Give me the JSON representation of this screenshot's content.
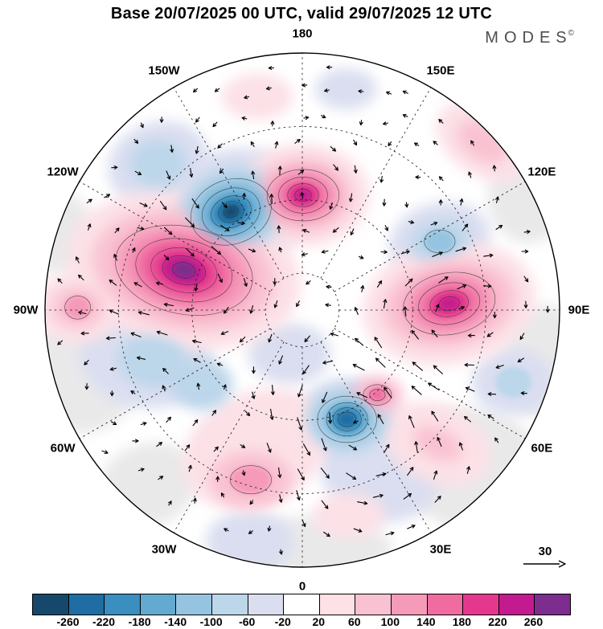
{
  "header": {
    "title": "Base 20/07/2025 00 UTC, valid 29/07/2025 12 UTC",
    "logo": "MODES",
    "logo_mark": "©"
  },
  "map": {
    "longitude_labels": [
      {
        "text": "180",
        "angle_deg": -90
      },
      {
        "text": "150E",
        "angle_deg": -60
      },
      {
        "text": "120E",
        "angle_deg": -30
      },
      {
        "text": "90E",
        "angle_deg": 0
      },
      {
        "text": "60E",
        "angle_deg": 30
      },
      {
        "text": "30E",
        "angle_deg": 60
      },
      {
        "text": "0",
        "angle_deg": 90
      },
      {
        "text": "30W",
        "angle_deg": 120
      },
      {
        "text": "60W",
        "angle_deg": 150
      },
      {
        "text": "90W",
        "angle_deg": 180
      },
      {
        "text": "120W",
        "angle_deg": -150
      },
      {
        "text": "150W",
        "angle_deg": -120
      }
    ]
  },
  "wind_scale": {
    "value": "30"
  },
  "chart_data": {
    "type": "heatmap",
    "subtype": "north-polar-stereographic-anomaly-map-with-wind-vectors",
    "title": "Base 20/07/2025 00 UTC, valid 29/07/2025 12 UTC",
    "wind_reference_value": 30,
    "gray_color": "#e9e9ea",
    "colorbar": {
      "orientation": "horizontal",
      "tick_labels": [
        "-260",
        "-220",
        "-180",
        "-140",
        "-100",
        "-60",
        "-20",
        "20",
        "60",
        "100",
        "140",
        "180",
        "220",
        "260"
      ],
      "colors": [
        "#16486b",
        "#1f6da3",
        "#3a8ec0",
        "#63aad2",
        "#94c4e0",
        "#bcd6ea",
        "#dadef0",
        "#ffffff",
        "#fce1e7",
        "#f9c2d2",
        "#f59ab9",
        "#ef6ba0",
        "#e5388d",
        "#c41a8f",
        "#7c2d8e"
      ]
    },
    "anomaly_centers": [
      {
        "u": -0.46,
        "v": -0.155,
        "s": 1.6,
        "r": 0.3,
        "sign": "positive"
      },
      {
        "u": -0.277,
        "v": -0.382,
        "s": -1.4,
        "r": 0.2,
        "sign": "negative"
      },
      {
        "u": 0.003,
        "v": -0.447,
        "s": 1.2,
        "r": 0.18,
        "sign": "positive"
      },
      {
        "u": 0.571,
        "v": -0.025,
        "s": 1.4,
        "r": 0.26,
        "sign": "positive"
      },
      {
        "u": 0.174,
        "v": 0.425,
        "s": -1.3,
        "r": 0.18,
        "sign": "negative"
      },
      {
        "u": -0.61,
        "v": 0.18,
        "s": -0.7,
        "r": 0.25,
        "sign": "negative"
      },
      {
        "u": -0.18,
        "v": 0.54,
        "s": 0.8,
        "r": 0.25,
        "sign": "positive"
      },
      {
        "u": 0.534,
        "v": -0.267,
        "s": -0.8,
        "r": 0.18,
        "sign": "negative"
      },
      {
        "u": 0.3,
        "v": 0.62,
        "s": -0.5,
        "r": 0.22,
        "sign": "negative"
      },
      {
        "u": 0.0,
        "v": 0.0,
        "s": -0.5,
        "r": 0.9,
        "sign": "background"
      }
    ],
    "shaded_regions": [
      {
        "u": -0.87,
        "v": 0.26,
        "rx": 0.24,
        "ry": 0.22,
        "rot": 0,
        "c": -1
      },
      {
        "u": -0.6,
        "v": 0.68,
        "rx": 0.2,
        "ry": 0.16,
        "rot": -20,
        "c": -1
      },
      {
        "u": 0.05,
        "v": 0.93,
        "rx": 0.3,
        "ry": 0.13,
        "rot": 0,
        "c": -1
      },
      {
        "u": 0.66,
        "v": 0.62,
        "rx": 0.3,
        "ry": 0.24,
        "rot": 15,
        "c": -1
      },
      {
        "u": 0.95,
        "v": 0.2,
        "rx": 0.18,
        "ry": 0.22,
        "rot": 0,
        "c": -1
      },
      {
        "u": 0.88,
        "v": -0.44,
        "rx": 0.16,
        "ry": 0.18,
        "rot": 0,
        "c": -1
      },
      {
        "u": -0.94,
        "v": -0.3,
        "rx": 0.13,
        "ry": 0.16,
        "rot": 0,
        "c": -1
      },
      {
        "u": -0.56,
        "v": -0.57,
        "rx": 0.2,
        "ry": 0.16,
        "rot": -20,
        "c": 6
      },
      {
        "u": -0.277,
        "v": -0.382,
        "rx": 0.3,
        "ry": 0.24,
        "rot": -20,
        "c": 6
      },
      {
        "u": -0.61,
        "v": 0.18,
        "rx": 0.26,
        "ry": 0.2,
        "rot": 10,
        "c": 6
      },
      {
        "u": -0.05,
        "v": 0.17,
        "rx": 0.16,
        "ry": 0.12,
        "rot": 0,
        "c": 6
      },
      {
        "u": 0.534,
        "v": -0.267,
        "rx": 0.2,
        "ry": 0.15,
        "rot": -15,
        "c": 6
      },
      {
        "u": 0.82,
        "v": 0.28,
        "rx": 0.16,
        "ry": 0.13,
        "rot": 0,
        "c": 6
      },
      {
        "u": 0.3,
        "v": 0.62,
        "rx": 0.24,
        "ry": 0.2,
        "rot": 20,
        "c": 6
      },
      {
        "u": -0.205,
        "v": 0.9,
        "rx": 0.17,
        "ry": 0.12,
        "rot": 0,
        "c": 6
      },
      {
        "u": 0.17,
        "v": -0.86,
        "rx": 0.12,
        "ry": 0.08,
        "rot": 0,
        "c": 6
      },
      {
        "u": 0.174,
        "v": 0.425,
        "rx": 0.2,
        "ry": 0.16,
        "rot": 0,
        "c": 6
      },
      {
        "u": -0.46,
        "v": -0.155,
        "rx": 0.46,
        "ry": 0.3,
        "rot": 12,
        "c": 8
      },
      {
        "u": 0.003,
        "v": -0.447,
        "rx": 0.26,
        "ry": 0.2,
        "rot": 0,
        "c": 8
      },
      {
        "u": 0.571,
        "v": -0.025,
        "rx": 0.34,
        "ry": 0.24,
        "rot": -10,
        "c": 8
      },
      {
        "u": -0.873,
        "v": -0.01,
        "rx": 0.17,
        "ry": 0.14,
        "rot": 0,
        "c": 8
      },
      {
        "u": 0.7,
        "v": -0.655,
        "rx": 0.2,
        "ry": 0.13,
        "rot": 35,
        "c": 8
      },
      {
        "u": -0.175,
        "v": -0.83,
        "rx": 0.14,
        "ry": 0.09,
        "rot": 0,
        "c": 8
      },
      {
        "u": -0.18,
        "v": 0.54,
        "rx": 0.3,
        "ry": 0.22,
        "rot": -25,
        "c": 8
      },
      {
        "u": 0.525,
        "v": 0.52,
        "rx": 0.22,
        "ry": 0.15,
        "rot": 25,
        "c": 8
      },
      {
        "u": 0.18,
        "v": 0.8,
        "rx": 0.14,
        "ry": 0.09,
        "rot": 0,
        "c": 8
      },
      {
        "u": -0.56,
        "v": -0.57,
        "rx": 0.11,
        "ry": 0.09,
        "rot": 0,
        "c": 5
      },
      {
        "u": -0.277,
        "v": -0.382,
        "rx": 0.22,
        "ry": 0.17,
        "rot": -20,
        "c": 5
      },
      {
        "u": -0.58,
        "v": 0.2,
        "rx": 0.14,
        "ry": 0.1,
        "rot": 10,
        "c": 5
      },
      {
        "u": -0.39,
        "v": 0.29,
        "rx": 0.12,
        "ry": 0.1,
        "rot": 0,
        "c": 5
      },
      {
        "u": 0.534,
        "v": -0.267,
        "rx": 0.12,
        "ry": 0.08,
        "rot": -15,
        "c": 5
      },
      {
        "u": 0.82,
        "v": 0.28,
        "rx": 0.07,
        "ry": 0.06,
        "rot": 0,
        "c": 5
      },
      {
        "u": 0.174,
        "v": 0.425,
        "rx": 0.16,
        "ry": 0.13,
        "rot": 0,
        "c": 5
      },
      {
        "u": -0.46,
        "v": -0.155,
        "rx": 0.36,
        "ry": 0.23,
        "rot": 12,
        "c": 9
      },
      {
        "u": 0.003,
        "v": -0.447,
        "rx": 0.19,
        "ry": 0.145,
        "rot": 0,
        "c": 9
      },
      {
        "u": 0.571,
        "v": -0.025,
        "rx": 0.26,
        "ry": 0.17,
        "rot": -10,
        "c": 9
      },
      {
        "u": -0.873,
        "v": -0.01,
        "rx": 0.1,
        "ry": 0.08,
        "rot": 0,
        "c": 9
      },
      {
        "u": 0.7,
        "v": -0.655,
        "rx": 0.11,
        "ry": 0.07,
        "rot": 35,
        "c": 9
      },
      {
        "u": -0.2,
        "v": 0.66,
        "rx": 0.16,
        "ry": 0.11,
        "rot": 0,
        "c": 9
      },
      {
        "u": 0.292,
        "v": 0.33,
        "rx": 0.1,
        "ry": 0.075,
        "rot": 0,
        "c": 9
      },
      {
        "u": 0.525,
        "v": 0.52,
        "rx": 0.1,
        "ry": 0.06,
        "rot": 25,
        "c": 9
      },
      {
        "u": -0.277,
        "v": -0.382,
        "rx": 0.16,
        "ry": 0.125,
        "rot": -20,
        "c": 4
      },
      {
        "u": 0.174,
        "v": 0.425,
        "rx": 0.115,
        "ry": 0.09,
        "rot": 0,
        "c": 4
      },
      {
        "u": 0.534,
        "v": -0.267,
        "rx": 0.06,
        "ry": 0.045,
        "rot": 0,
        "c": 4
      },
      {
        "u": -0.46,
        "v": -0.155,
        "rx": 0.27,
        "ry": 0.17,
        "rot": 12,
        "c": 10
      },
      {
        "u": 0.003,
        "v": -0.447,
        "rx": 0.14,
        "ry": 0.1,
        "rot": 0,
        "c": 10
      },
      {
        "u": 0.571,
        "v": -0.025,
        "rx": 0.18,
        "ry": 0.12,
        "rot": -10,
        "c": 10
      },
      {
        "u": -0.873,
        "v": -0.01,
        "rx": 0.05,
        "ry": 0.045,
        "rot": 0,
        "c": 10
      },
      {
        "u": -0.2,
        "v": 0.66,
        "rx": 0.08,
        "ry": 0.055,
        "rot": 0,
        "c": 10
      },
      {
        "u": 0.292,
        "v": 0.33,
        "rx": 0.055,
        "ry": 0.04,
        "rot": 0,
        "c": 10
      },
      {
        "u": -0.277,
        "v": -0.382,
        "rx": 0.115,
        "ry": 0.09,
        "rot": -20,
        "c": 3
      },
      {
        "u": 0.174,
        "v": 0.425,
        "rx": 0.08,
        "ry": 0.065,
        "rot": 0,
        "c": 3
      },
      {
        "u": -0.46,
        "v": -0.155,
        "rx": 0.19,
        "ry": 0.12,
        "rot": 12,
        "c": 11
      },
      {
        "u": 0.003,
        "v": -0.447,
        "rx": 0.095,
        "ry": 0.07,
        "rot": 0,
        "c": 11
      },
      {
        "u": 0.571,
        "v": -0.025,
        "rx": 0.12,
        "ry": 0.08,
        "rot": -10,
        "c": 11
      },
      {
        "u": 0.292,
        "v": 0.33,
        "rx": 0.03,
        "ry": 0.022,
        "rot": 0,
        "c": 11
      },
      {
        "u": -0.277,
        "v": -0.382,
        "rx": 0.08,
        "ry": 0.06,
        "rot": -20,
        "c": 2
      },
      {
        "u": 0.174,
        "v": 0.425,
        "rx": 0.055,
        "ry": 0.045,
        "rot": 0,
        "c": 2
      },
      {
        "u": -0.46,
        "v": -0.155,
        "rx": 0.13,
        "ry": 0.085,
        "rot": 12,
        "c": 12
      },
      {
        "u": 0.003,
        "v": -0.447,
        "rx": 0.06,
        "ry": 0.045,
        "rot": 0,
        "c": 12
      },
      {
        "u": 0.571,
        "v": -0.025,
        "rx": 0.075,
        "ry": 0.05,
        "rot": -10,
        "c": 12
      },
      {
        "u": -0.277,
        "v": -0.382,
        "rx": 0.05,
        "ry": 0.04,
        "rot": -20,
        "c": 1
      },
      {
        "u": 0.174,
        "v": 0.425,
        "rx": 0.035,
        "ry": 0.028,
        "rot": 0,
        "c": 1
      },
      {
        "u": -0.46,
        "v": -0.155,
        "rx": 0.085,
        "ry": 0.055,
        "rot": 12,
        "c": 13
      },
      {
        "u": 0.003,
        "v": -0.447,
        "rx": 0.032,
        "ry": 0.024,
        "rot": 0,
        "c": 13
      },
      {
        "u": 0.571,
        "v": -0.025,
        "rx": 0.04,
        "ry": 0.027,
        "rot": -10,
        "c": 13
      },
      {
        "u": -0.277,
        "v": -0.382,
        "rx": 0.028,
        "ry": 0.022,
        "rot": -20,
        "c": 0
      },
      {
        "u": -0.46,
        "v": -0.155,
        "rx": 0.045,
        "ry": 0.03,
        "rot": 12,
        "c": 14
      }
    ]
  }
}
